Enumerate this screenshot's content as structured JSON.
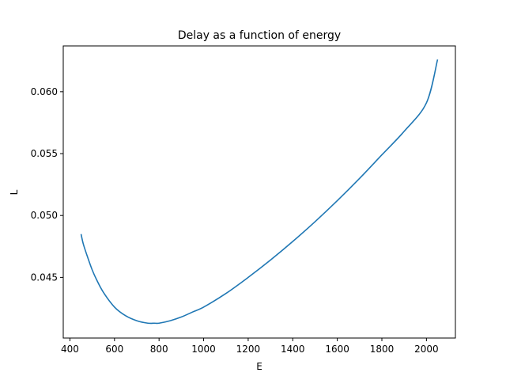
{
  "chart_data": {
    "type": "line",
    "title": "Delay as a function of energy",
    "xlabel": "E",
    "ylabel": "L",
    "xlim": [
      370,
      2130
    ],
    "ylim": [
      0.0401,
      0.0637
    ],
    "xticks": [
      400,
      600,
      800,
      1000,
      1200,
      1400,
      1600,
      1800,
      2000
    ],
    "xtick_labels": [
      "400",
      "600",
      "800",
      "1000",
      "1200",
      "1400",
      "1600",
      "1800",
      "2000"
    ],
    "yticks": [
      0.045,
      0.05,
      0.055,
      0.06
    ],
    "ytick_labels": [
      "0.045",
      "0.050",
      "0.055",
      "0.060"
    ],
    "grid": false,
    "legend": "none",
    "line_color": "#1f77b4",
    "series": [
      {
        "x": [
          450,
          460,
          480,
          500,
          520,
          550,
          600,
          650,
          700,
          750,
          780,
          800,
          850,
          900,
          950,
          1000,
          1100,
          1200,
          1300,
          1400,
          1500,
          1600,
          1700,
          1800,
          1900,
          2000,
          2050
        ],
        "values": [
          0.0485,
          0.0477,
          0.0466,
          0.0456,
          0.0448,
          0.0438,
          0.0426,
          0.0419,
          0.0415,
          0.0413,
          0.0413,
          0.0413,
          0.0415,
          0.0418,
          0.0422,
          0.0426,
          0.0437,
          0.045,
          0.0464,
          0.0479,
          0.0495,
          0.0512,
          0.053,
          0.0549,
          0.0568,
          0.0591,
          0.0626
        ]
      }
    ]
  }
}
